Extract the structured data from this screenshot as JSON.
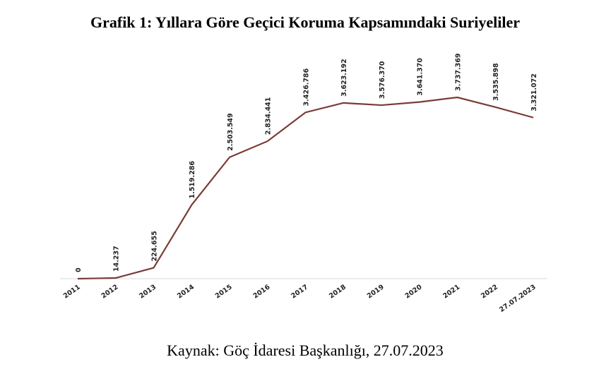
{
  "chart_data": {
    "type": "line",
    "title": "Grafik 1: Yıllara Göre Geçici Koruma Kapsamındaki Suriyeliler",
    "categories": [
      "2011",
      "2012",
      "2013",
      "2014",
      "2015",
      "2016",
      "2017",
      "2018",
      "2019",
      "2020",
      "2021",
      "2022",
      "27.07.2023"
    ],
    "values": [
      0,
      14237,
      224655,
      1519286,
      2503549,
      2834441,
      3426786,
      3623192,
      3576370,
      3641370,
      3737369,
      3535898,
      3321072
    ],
    "value_labels": [
      "0",
      "14.237",
      "224.655",
      "1.519.286",
      "2.503.549",
      "2.834.441",
      "3.426.786",
      "3.623.192",
      "3.576.370",
      "3.641.370",
      "3.737.369",
      "3.535.898",
      "3.321.072"
    ],
    "color": "#7a3b37",
    "source": "Kaynak: Göç İdaresi Başkanlığı, 27.07.2023"
  }
}
